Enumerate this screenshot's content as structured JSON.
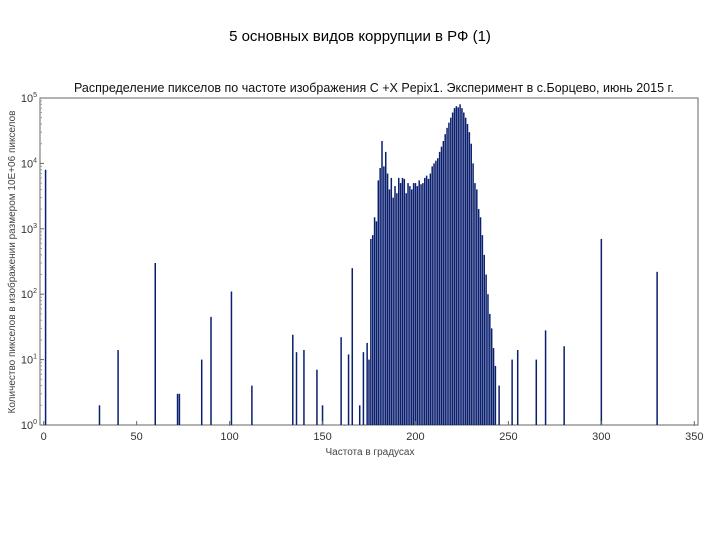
{
  "slide": {
    "title": "5 основных видов коррупции в РФ (1)"
  },
  "chart_data": {
    "type": "bar",
    "title": "Распределение пикселов по частоте изображения C +X Pepix1. Эксперимент в с.Борцево, июнь 2015 г.",
    "xlabel": "Частота в градусах",
    "ylabel": "Количество пикселов в изображении размером 10E+06 пикселов",
    "xlim": [
      -2,
      352
    ],
    "ylim": [
      1,
      100000
    ],
    "yscale": "log",
    "xticks": [
      0,
      50,
      100,
      150,
      200,
      250,
      300,
      350
    ],
    "yticks": [
      {
        "value": 1,
        "base": "10",
        "exp": "0"
      },
      {
        "value": 10,
        "base": "10",
        "exp": "1"
      },
      {
        "value": 100,
        "base": "10",
        "exp": "2"
      },
      {
        "value": 1000,
        "base": "10",
        "exp": "3"
      },
      {
        "value": 10000,
        "base": "10",
        "exp": "4"
      },
      {
        "value": 100000,
        "base": "10",
        "exp": "5"
      }
    ],
    "bar_color": "#0a1f6e",
    "x": [
      0,
      1,
      30,
      40,
      60,
      72,
      73,
      85,
      90,
      100,
      101,
      112,
      134,
      136,
      140,
      147,
      150,
      160,
      162,
      164,
      166,
      170,
      172,
      174,
      175,
      176,
      177,
      178,
      179,
      180,
      181,
      182,
      183,
      184,
      185,
      186,
      187,
      188,
      189,
      190,
      191,
      192,
      193,
      194,
      195,
      196,
      197,
      198,
      199,
      200,
      201,
      202,
      203,
      204,
      205,
      206,
      207,
      208,
      209,
      210,
      211,
      212,
      213,
      214,
      215,
      216,
      217,
      218,
      219,
      220,
      221,
      222,
      223,
      224,
      225,
      226,
      227,
      228,
      229,
      230,
      231,
      232,
      233,
      234,
      235,
      236,
      237,
      238,
      239,
      240,
      241,
      242,
      243,
      245,
      252,
      255,
      265,
      270,
      280,
      300,
      330,
      350
    ],
    "values": [
      1,
      8000,
      2,
      14,
      300,
      3,
      3,
      10,
      45,
      1,
      110,
      4,
      24,
      13,
      14,
      7,
      2,
      22,
      1,
      12,
      250,
      2,
      13,
      18,
      10,
      700,
      800,
      1500,
      1300,
      5500,
      8500,
      22000,
      9000,
      15000,
      7000,
      4000,
      6000,
      3000,
      4500,
      3500,
      6000,
      5000,
      6000,
      5800,
      3500,
      5000,
      4500,
      4000,
      5000,
      5000,
      4500,
      5500,
      4800,
      5000,
      6000,
      6500,
      5800,
      7000,
      9000,
      10000,
      11000,
      12000,
      15000,
      18000,
      22000,
      28000,
      35000,
      42000,
      50000,
      60000,
      70000,
      75000,
      72000,
      80000,
      70000,
      60000,
      50000,
      40000,
      30000,
      20000,
      10000,
      5000,
      4000,
      2000,
      1500,
      800,
      400,
      200,
      100,
      50,
      30,
      15,
      8,
      4,
      10,
      14,
      10,
      28,
      16,
      700,
      220,
      1
    ]
  }
}
